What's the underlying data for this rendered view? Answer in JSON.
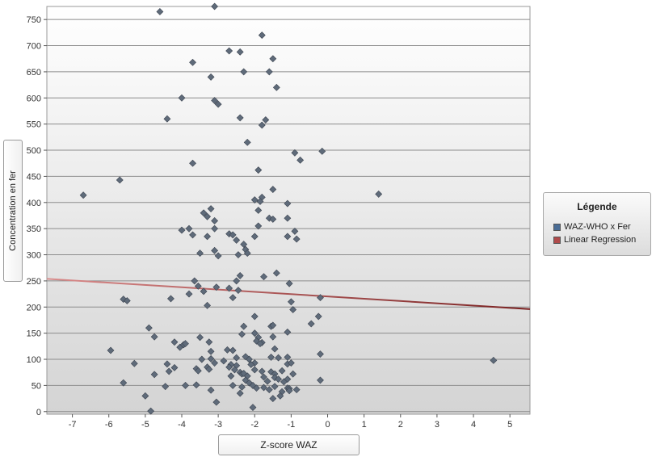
{
  "chart_data": {
    "type": "scatter",
    "title": "",
    "xlabel": "Z-score WAZ",
    "ylabel": "Concentration en fer",
    "xlim": [
      -7.7,
      5.55
    ],
    "ylim": [
      -5,
      775
    ],
    "x_ticks": [
      -7,
      -6,
      -5,
      -4,
      -3,
      -2,
      -1,
      0,
      1,
      2,
      3,
      4,
      5
    ],
    "y_ticks": [
      0,
      50,
      100,
      150,
      200,
      250,
      300,
      350,
      400,
      450,
      500,
      550,
      600,
      650,
      700,
      750
    ],
    "grid": "horizontal",
    "legend_title": "Légende",
    "legend_position": "right",
    "series": [
      {
        "name": "WAZ-WHO x Fer",
        "type": "scatter",
        "color": "#5f6b7a",
        "points": [
          [
            -4.6,
            765
          ],
          [
            -3.1,
            775
          ],
          [
            -1.8,
            720
          ],
          [
            -2.7,
            690
          ],
          [
            -2.4,
            688
          ],
          [
            -1.5,
            675
          ],
          [
            -3.7,
            668
          ],
          [
            -2.3,
            650
          ],
          [
            -1.6,
            650
          ],
          [
            -3.2,
            640
          ],
          [
            -1.4,
            620
          ],
          [
            -4.0,
            600
          ],
          [
            -3.1,
            595
          ],
          [
            -3.0,
            588
          ],
          [
            -4.4,
            560
          ],
          [
            -2.4,
            562
          ],
          [
            -1.7,
            558
          ],
          [
            -1.8,
            548
          ],
          [
            -2.2,
            515
          ],
          [
            -0.9,
            495
          ],
          [
            -0.15,
            498
          ],
          [
            -0.75,
            481
          ],
          [
            -3.7,
            475
          ],
          [
            -1.9,
            462
          ],
          [
            -5.7,
            443
          ],
          [
            -6.7,
            414
          ],
          [
            1.4,
            416
          ],
          [
            -1.5,
            425
          ],
          [
            -2.0,
            405
          ],
          [
            -1.8,
            410
          ],
          [
            -1.85,
            402
          ],
          [
            -1.1,
            398
          ],
          [
            -1.9,
            385
          ],
          [
            -3.2,
            388
          ],
          [
            -3.4,
            380
          ],
          [
            -3.3,
            373
          ],
          [
            -3.1,
            365
          ],
          [
            -1.6,
            370
          ],
          [
            -1.5,
            368
          ],
          [
            -1.1,
            370
          ],
          [
            -1.9,
            355
          ],
          [
            -3.8,
            350
          ],
          [
            -4.0,
            347
          ],
          [
            -3.1,
            350
          ],
          [
            -0.9,
            345
          ],
          [
            -2.7,
            340
          ],
          [
            -2.6,
            338
          ],
          [
            -3.7,
            338
          ],
          [
            -3.3,
            335
          ],
          [
            -2.0,
            335
          ],
          [
            -1.1,
            335
          ],
          [
            -0.85,
            330
          ],
          [
            -2.5,
            328
          ],
          [
            -2.3,
            320
          ],
          [
            -2.25,
            310
          ],
          [
            -3.1,
            308
          ],
          [
            -2.2,
            303
          ],
          [
            -3.5,
            303
          ],
          [
            -3.0,
            298
          ],
          [
            -2.45,
            300
          ],
          [
            -1.4,
            265
          ],
          [
            -2.4,
            260
          ],
          [
            -3.65,
            250
          ],
          [
            -1.75,
            258
          ],
          [
            -2.5,
            250
          ],
          [
            -1.05,
            245
          ],
          [
            -3.55,
            240
          ],
          [
            -3.05,
            238
          ],
          [
            -2.7,
            236
          ],
          [
            -2.45,
            232
          ],
          [
            -3.4,
            230
          ],
          [
            -3.8,
            225
          ],
          [
            -0.2,
            218
          ],
          [
            -5.6,
            215
          ],
          [
            -5.5,
            212
          ],
          [
            -4.3,
            216
          ],
          [
            -2.6,
            218
          ],
          [
            -1.0,
            210
          ],
          [
            -3.3,
            203
          ],
          [
            -0.95,
            195
          ],
          [
            -2.0,
            182
          ],
          [
            -0.25,
            182
          ],
          [
            -0.45,
            168
          ],
          [
            -2.3,
            163
          ],
          [
            -1.55,
            163
          ],
          [
            -1.5,
            165
          ],
          [
            -4.9,
            160
          ],
          [
            -1.1,
            152
          ],
          [
            -2.35,
            148
          ],
          [
            -2.0,
            150
          ],
          [
            -1.5,
            143
          ],
          [
            -1.9,
            142
          ],
          [
            -4.75,
            143
          ],
          [
            -3.5,
            142
          ],
          [
            -1.95,
            135
          ],
          [
            -1.8,
            132
          ],
          [
            -3.25,
            133
          ],
          [
            -4.2,
            133
          ],
          [
            -4.05,
            123
          ],
          [
            -3.95,
            128
          ],
          [
            -3.9,
            130
          ],
          [
            -1.85,
            130
          ],
          [
            -5.95,
            117
          ],
          [
            -3.2,
            115
          ],
          [
            -2.75,
            118
          ],
          [
            -2.6,
            117
          ],
          [
            -1.45,
            120
          ],
          [
            -0.2,
            110
          ],
          [
            -3.45,
            100
          ],
          [
            -3.2,
            101
          ],
          [
            -2.85,
            97
          ],
          [
            -2.25,
            105
          ],
          [
            -2.15,
            100
          ],
          [
            -1.55,
            104
          ],
          [
            -1.35,
            103
          ],
          [
            -1.1,
            104
          ],
          [
            -2.5,
            103
          ],
          [
            -5.3,
            92
          ],
          [
            -4.4,
            91
          ],
          [
            -3.1,
            93
          ],
          [
            -2.0,
            93
          ],
          [
            -2.1,
            90
          ],
          [
            -1.1,
            91
          ],
          [
            -1.0,
            93
          ],
          [
            -2.65,
            90
          ],
          [
            -2.5,
            88
          ],
          [
            -2.7,
            85
          ],
          [
            -3.3,
            85
          ],
          [
            -3.6,
            82
          ],
          [
            -4.2,
            84
          ],
          [
            -4.35,
            77
          ],
          [
            -3.55,
            78
          ],
          [
            -3.25,
            81
          ],
          [
            -2.55,
            80
          ],
          [
            -2.4,
            75
          ],
          [
            -2.35,
            72
          ],
          [
            -2.3,
            73
          ],
          [
            -2.0,
            80
          ],
          [
            -1.8,
            77
          ],
          [
            -1.55,
            76
          ],
          [
            -1.45,
            72
          ],
          [
            -1.25,
            78
          ],
          [
            -0.95,
            72
          ],
          [
            -4.75,
            71
          ],
          [
            -2.65,
            68
          ],
          [
            -2.2,
            68
          ],
          [
            -1.75,
            66
          ],
          [
            -1.45,
            65
          ],
          [
            -1.35,
            62
          ],
          [
            -1.1,
            62
          ],
          [
            -2.25,
            60
          ],
          [
            -0.2,
            60
          ],
          [
            -2.15,
            55
          ],
          [
            -1.65,
            58
          ],
          [
            -1.2,
            57
          ],
          [
            -5.6,
            55
          ],
          [
            -4.45,
            48
          ],
          [
            -3.9,
            50
          ],
          [
            -3.6,
            51
          ],
          [
            -2.6,
            50
          ],
          [
            -2.35,
            47
          ],
          [
            -2.05,
            50
          ],
          [
            -1.95,
            45
          ],
          [
            -1.75,
            46
          ],
          [
            -1.6,
            42
          ],
          [
            -1.45,
            48
          ],
          [
            -1.1,
            45
          ],
          [
            -1.05,
            44
          ],
          [
            -1.25,
            38
          ],
          [
            -1.05,
            40
          ],
          [
            -0.85,
            42
          ],
          [
            -3.2,
            41
          ],
          [
            -2.4,
            35
          ],
          [
            -1.3,
            30
          ],
          [
            -1.5,
            25
          ],
          [
            -5.0,
            30
          ],
          [
            -3.05,
            18
          ],
          [
            -2.05,
            8
          ],
          [
            -4.85,
            1
          ],
          [
            4.55,
            98
          ]
        ]
      },
      {
        "name": "Linear Regression",
        "type": "line",
        "color": "#8b2f2f",
        "x": [
          -7.7,
          5.55
        ],
        "y": [
          254,
          196
        ]
      }
    ]
  }
}
